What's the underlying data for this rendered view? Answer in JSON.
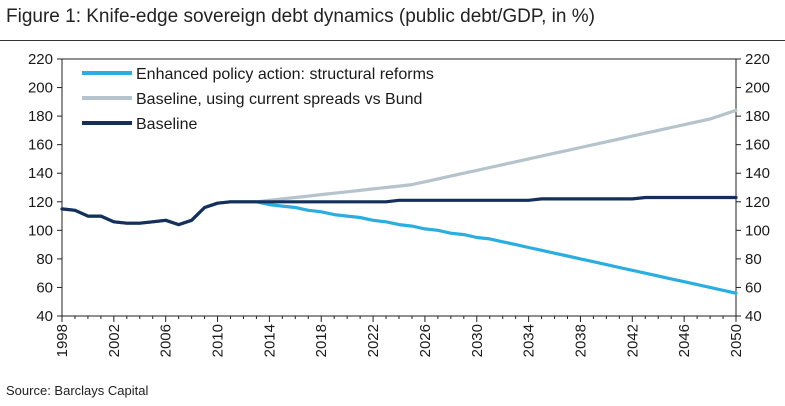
{
  "title": "Figure 1: Knife-edge sovereign debt dynamics (public debt/GDP, in %)",
  "source": "Source: Barclays Capital",
  "chart_data": {
    "type": "line",
    "title": "Figure 1: Knife-edge sovereign debt dynamics (public debt/GDP, in %)",
    "xlabel": "",
    "ylabel": "",
    "xlim": [
      1998,
      2050
    ],
    "ylim": [
      40,
      220
    ],
    "yticks": [
      40,
      60,
      80,
      100,
      120,
      140,
      160,
      180,
      200,
      220
    ],
    "xticks": [
      1998,
      2002,
      2006,
      2010,
      2014,
      2018,
      2022,
      2026,
      2030,
      2034,
      2038,
      2042,
      2046,
      2050
    ],
    "grid": false,
    "legend_position": "top-left",
    "x": [
      1998,
      1999,
      2000,
      2001,
      2002,
      2003,
      2004,
      2005,
      2006,
      2007,
      2008,
      2009,
      2010,
      2011,
      2012,
      2013,
      2014,
      2015,
      2016,
      2017,
      2018,
      2019,
      2020,
      2021,
      2022,
      2023,
      2024,
      2025,
      2026,
      2027,
      2028,
      2029,
      2030,
      2031,
      2032,
      2033,
      2034,
      2035,
      2036,
      2037,
      2038,
      2039,
      2040,
      2041,
      2042,
      2043,
      2044,
      2045,
      2046,
      2047,
      2048,
      2049,
      2050
    ],
    "series": [
      {
        "name": "Enhanced policy action: structural reforms",
        "color": "#2aaee0",
        "values": [
          115,
          114,
          110,
          110,
          106,
          105,
          105,
          106,
          107,
          104,
          107,
          116,
          119,
          120,
          120,
          120,
          118,
          117,
          116,
          114,
          113,
          111,
          110,
          109,
          107,
          106,
          104,
          103,
          101,
          100,
          98,
          97,
          95,
          94,
          92,
          90,
          88,
          86,
          84,
          82,
          80,
          78,
          76,
          74,
          72,
          70,
          68,
          66,
          64,
          62,
          60,
          58,
          56
        ]
      },
      {
        "name": "Baseline, using current spreads vs Bund",
        "color": "#b5c3cc",
        "values": [
          115,
          114,
          110,
          110,
          106,
          105,
          105,
          106,
          107,
          104,
          107,
          116,
          119,
          120,
          120,
          120,
          121,
          122,
          123,
          124,
          125,
          126,
          127,
          128,
          129,
          130,
          131,
          132,
          134,
          136,
          138,
          140,
          142,
          144,
          146,
          148,
          150,
          152,
          154,
          156,
          158,
          160,
          162,
          164,
          166,
          168,
          170,
          172,
          174,
          176,
          178,
          181,
          184
        ]
      },
      {
        "name": "Baseline",
        "color": "#14305a",
        "values": [
          115,
          114,
          110,
          110,
          106,
          105,
          105,
          106,
          107,
          104,
          107,
          116,
          119,
          120,
          120,
          120,
          120,
          120,
          120,
          120,
          120,
          120,
          120,
          120,
          120,
          120,
          121,
          121,
          121,
          121,
          121,
          121,
          121,
          121,
          121,
          121,
          121,
          122,
          122,
          122,
          122,
          122,
          122,
          122,
          122,
          123,
          123,
          123,
          123,
          123,
          123,
          123,
          123
        ]
      }
    ]
  }
}
